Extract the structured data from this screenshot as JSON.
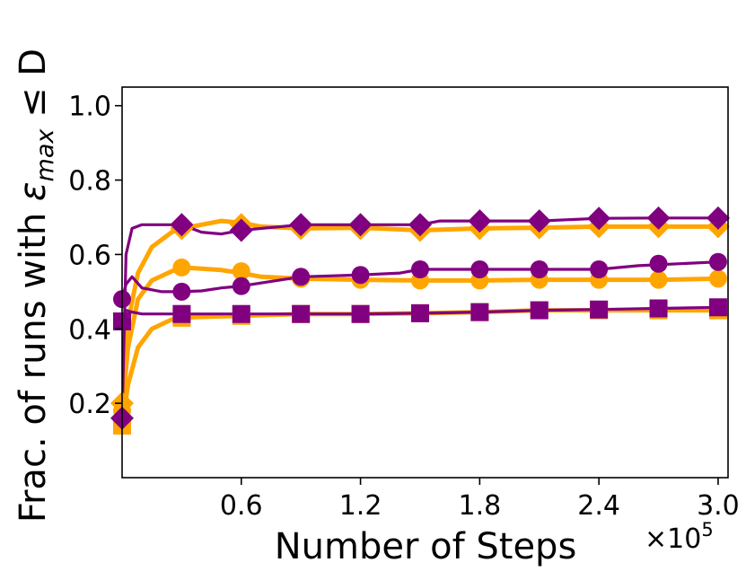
{
  "chart_data": {
    "type": "line",
    "xlabel": "Number of Steps",
    "x_multiplier": "×10",
    "x_multiplier_exp": "5",
    "ylabel_prefix": "Frac. of runs with ",
    "ylabel_symbol": "ε",
    "ylabel_sub": "max",
    "ylabel_suffix": " ≤ D",
    "xlim": [
      0,
      3.05
    ],
    "ylim": [
      0.0,
      1.05
    ],
    "x_ticks": [
      0.6,
      1.2,
      1.8,
      2.4,
      3.0
    ],
    "x_tick_labels": [
      "0.6",
      "1.2",
      "1.8",
      "2.4",
      "3.0"
    ],
    "y_ticks": [
      0.2,
      0.4,
      0.6,
      0.8,
      1.0
    ],
    "y_tick_labels": [
      "0.2",
      "0.4",
      "0.6",
      "0.8",
      "1.0"
    ],
    "grid": false,
    "marker_x": [
      0.3,
      0.6,
      0.9,
      1.2,
      1.5,
      1.8,
      2.1,
      2.4,
      2.7,
      3.0
    ],
    "series": [
      {
        "color": "#FFA500",
        "marker": "diamond",
        "x": [
          0.0,
          0.03,
          0.08,
          0.15,
          0.25,
          0.3,
          0.4,
          0.5,
          0.6,
          0.7,
          0.9,
          1.2,
          1.5,
          1.8,
          2.1,
          2.4,
          2.7,
          3.0
        ],
        "y": [
          0.2,
          0.42,
          0.55,
          0.62,
          0.66,
          0.67,
          0.68,
          0.69,
          0.685,
          0.675,
          0.67,
          0.672,
          0.665,
          0.67,
          0.672,
          0.675,
          0.675,
          0.675
        ],
        "marker_y": [
          0.67,
          0.68,
          0.67,
          0.67,
          0.665,
          0.67,
          0.672,
          0.675,
          0.675,
          0.675
        ]
      },
      {
        "color": "#FFA500",
        "marker": "circle",
        "x": [
          0.0,
          0.03,
          0.08,
          0.15,
          0.25,
          0.3,
          0.4,
          0.5,
          0.6,
          0.7,
          0.9,
          1.2,
          1.5,
          1.8,
          2.1,
          2.4,
          2.7,
          3.0
        ],
        "y": [
          0.18,
          0.35,
          0.48,
          0.53,
          0.555,
          0.565,
          0.562,
          0.558,
          0.55,
          0.54,
          0.535,
          0.532,
          0.53,
          0.53,
          0.532,
          0.532,
          0.532,
          0.535
        ],
        "marker_y": [
          0.565,
          0.555,
          0.535,
          0.532,
          0.53,
          0.53,
          0.532,
          0.532,
          0.532,
          0.535
        ]
      },
      {
        "color": "#FFA500",
        "marker": "square",
        "x": [
          0.0,
          0.03,
          0.08,
          0.15,
          0.25,
          0.3,
          0.4,
          0.6,
          0.9,
          1.2,
          1.5,
          1.8,
          2.1,
          2.4,
          2.7,
          3.0
        ],
        "y": [
          0.14,
          0.25,
          0.35,
          0.4,
          0.425,
          0.43,
          0.432,
          0.435,
          0.44,
          0.44,
          0.442,
          0.445,
          0.45,
          0.45,
          0.45,
          0.45
        ],
        "marker_y": [
          0.43,
          0.435,
          0.44,
          0.44,
          0.442,
          0.445,
          0.45,
          0.45,
          0.45,
          0.45
        ]
      },
      {
        "color": "#800080",
        "marker": "diamond",
        "x": [
          0.0,
          0.02,
          0.05,
          0.1,
          0.2,
          0.3,
          0.4,
          0.5,
          0.6,
          0.9,
          1.2,
          1.5,
          1.6,
          1.8,
          2.1,
          2.4,
          2.7,
          3.0
        ],
        "y": [
          0.16,
          0.6,
          0.67,
          0.68,
          0.68,
          0.68,
          0.66,
          0.655,
          0.665,
          0.68,
          0.68,
          0.68,
          0.69,
          0.69,
          0.69,
          0.697,
          0.698,
          0.698
        ],
        "marker_y": [
          0.68,
          0.665,
          0.68,
          0.68,
          0.68,
          0.69,
          0.69,
          0.697,
          0.698,
          0.698
        ]
      },
      {
        "color": "#800080",
        "marker": "circle",
        "x": [
          0.0,
          0.02,
          0.05,
          0.1,
          0.2,
          0.3,
          0.4,
          0.5,
          0.6,
          0.9,
          1.2,
          1.4,
          1.5,
          1.8,
          2.1,
          2.4,
          2.6,
          3.0
        ],
        "y": [
          0.48,
          0.52,
          0.54,
          0.51,
          0.5,
          0.5,
          0.502,
          0.51,
          0.515,
          0.54,
          0.545,
          0.55,
          0.56,
          0.56,
          0.56,
          0.56,
          0.57,
          0.58
        ],
        "marker_y": [
          0.5,
          0.515,
          0.54,
          0.545,
          0.56,
          0.56,
          0.56,
          0.56,
          0.575,
          0.58
        ]
      },
      {
        "color": "#800080",
        "marker": "square",
        "x": [
          0.0,
          0.02,
          0.05,
          0.1,
          0.2,
          0.3,
          0.6,
          0.9,
          1.2,
          1.5,
          1.8,
          2.1,
          2.4,
          2.7,
          3.0
        ],
        "y": [
          0.42,
          0.45,
          0.445,
          0.44,
          0.44,
          0.44,
          0.44,
          0.44,
          0.44,
          0.442,
          0.445,
          0.45,
          0.452,
          0.455,
          0.458
        ],
        "marker_y": [
          0.44,
          0.44,
          0.44,
          0.44,
          0.442,
          0.445,
          0.45,
          0.452,
          0.455,
          0.458
        ]
      }
    ]
  }
}
